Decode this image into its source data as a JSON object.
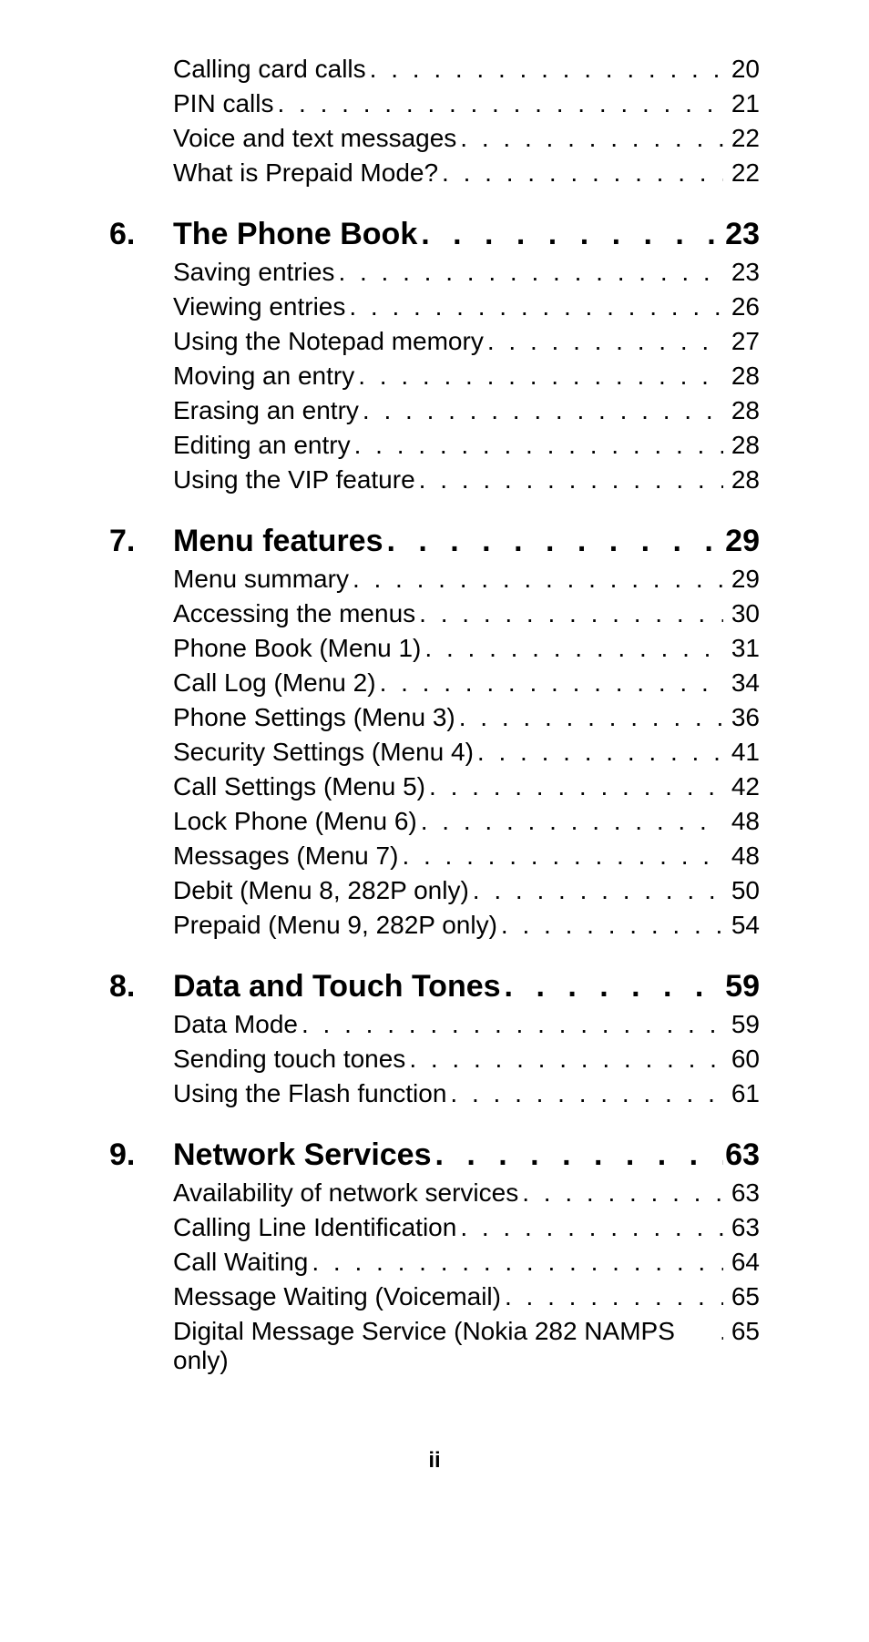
{
  "preItems": [
    {
      "title": "Calling card calls",
      "page": "20"
    },
    {
      "title": "PIN calls",
      "page": "21"
    },
    {
      "title": "Voice and text messages",
      "page": "22"
    },
    {
      "title": "What is Prepaid Mode?",
      "page": "22"
    }
  ],
  "sections": [
    {
      "num": "6.",
      "title": "The Phone Book",
      "page": "23",
      "items": [
        {
          "title": "Saving entries",
          "page": "23"
        },
        {
          "title": "Viewing entries",
          "page": "26"
        },
        {
          "title": "Using the Notepad memory",
          "page": "27"
        },
        {
          "title": "Moving an entry",
          "page": "28"
        },
        {
          "title": "Erasing an entry",
          "page": "28"
        },
        {
          "title": "Editing an entry",
          "page": "28"
        },
        {
          "title": "Using the VIP feature",
          "page": "28"
        }
      ]
    },
    {
      "num": "7.",
      "title": "Menu features",
      "page": "29",
      "items": [
        {
          "title": "Menu summary",
          "page": "29"
        },
        {
          "title": "Accessing the menus",
          "page": "30"
        },
        {
          "title": "Phone Book (Menu 1)",
          "page": "31"
        },
        {
          "title": "Call Log (Menu 2)",
          "page": "34"
        },
        {
          "title": "Phone Settings (Menu 3)",
          "page": "36"
        },
        {
          "title": "Security Settings (Menu 4)",
          "page": "41"
        },
        {
          "title": "Call Settings (Menu 5)",
          "page": "42"
        },
        {
          "title": "Lock Phone (Menu 6)",
          "page": "48"
        },
        {
          "title": "Messages (Menu 7)",
          "page": "48"
        },
        {
          "title": "Debit (Menu 8, 282P only)",
          "page": "50"
        },
        {
          "title": "Prepaid (Menu 9, 282P only)",
          "page": "54"
        }
      ]
    },
    {
      "num": "8.",
      "title": "Data and Touch Tones",
      "page": "59",
      "items": [
        {
          "title": "Data Mode",
          "page": "59"
        },
        {
          "title": "Sending touch tones",
          "page": "60"
        },
        {
          "title": "Using the Flash function",
          "page": "61"
        }
      ]
    },
    {
      "num": "9.",
      "title": "Network Services",
      "page": "63",
      "items": [
        {
          "title": "Availability of network services",
          "page": "63"
        },
        {
          "title": "Calling Line Identification",
          "page": "63"
        },
        {
          "title": "Call Waiting",
          "page": "64"
        },
        {
          "title": "Message Waiting (Voicemail)",
          "page": "65"
        },
        {
          "title": "Digital Message Service (Nokia 282 NAMPS only)",
          "page": "65",
          "nodots": true
        }
      ]
    }
  ],
  "footer": "ii",
  "dotFill": ". . . . . . . . . . . . . . . . . . . . . . . . . . . . . . . . . . . . . . . . . . . . . . . . . . . . . . . . . . . . . . . . . . . . . . . . . . . . . . . . . . . . . . . . . . . . . . . . . . . . . . . . . . . . ."
}
